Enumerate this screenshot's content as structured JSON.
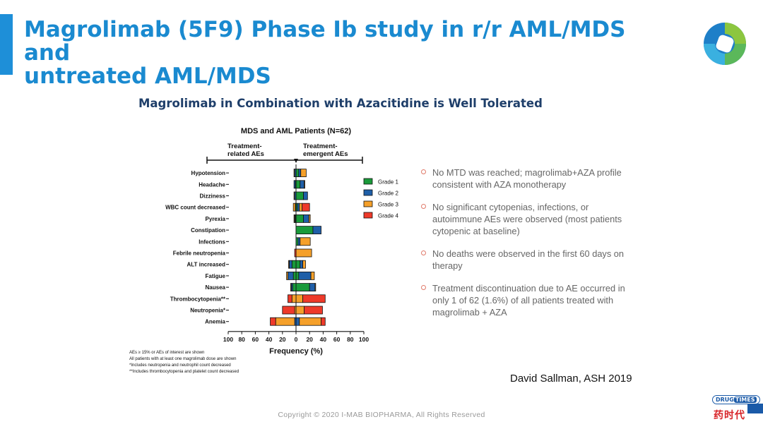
{
  "slide": {
    "title_line1": "Magrolimab (5F9) Phase Ib study in r/r AML/MDS and",
    "title_line2": "untreated AML/MDS",
    "subtitle": "Magrolimab in Combination with Azacitidine is Well Tolerated",
    "accent_color": "#1e8fd8"
  },
  "chart_data": {
    "type": "bar",
    "orientation": "horizontal-diverging-stacked",
    "title": "MDS and AML Patients (N=62)",
    "left_header": [
      "Treatment-",
      "related AEs"
    ],
    "right_header": [
      "Treatment-",
      "emergent AEs"
    ],
    "xlabel": "Frequency (%)",
    "ylabel": "",
    "xlim": [
      -100,
      100
    ],
    "x_ticks": [
      -100,
      -80,
      -60,
      -40,
      -20,
      0,
      20,
      40,
      60,
      80,
      100
    ],
    "x_tick_labels": [
      "100",
      "80",
      "60",
      "40",
      "20",
      "0",
      "20",
      "40",
      "60",
      "80",
      "100"
    ],
    "categories": [
      "Hypotension",
      "Headache",
      "Dizziness",
      "WBC count decreased",
      "Pyrexia",
      "Constipation",
      "Infections",
      "Febrile neutropenia",
      "ALT increased",
      "Fatigue",
      "Nausea",
      "Thrombocytopenia**",
      "Neutropenia*",
      "Anemia"
    ],
    "legend": {
      "placement": "right",
      "entries": [
        "Grade 1",
        "Grade 2",
        "Grade 3",
        "Grade 4"
      ]
    },
    "colors": {
      "Grade 1": "#1a9a3a",
      "Grade 2": "#1f5fa8",
      "Grade 3": "#f5a02a",
      "Grade 4": "#ee3a2a"
    },
    "left_series": [
      {
        "name": "Grade 1",
        "values": [
          0,
          1,
          0,
          0,
          1,
          0,
          0,
          0,
          6,
          4,
          5,
          0,
          0,
          0
        ]
      },
      {
        "name": "Grade 2",
        "values": [
          2,
          2,
          2,
          1,
          1,
          0,
          0,
          0,
          4,
          8,
          2,
          0,
          0,
          2
        ]
      },
      {
        "name": "Grade 3",
        "values": [
          1,
          0,
          1,
          3,
          1,
          0,
          0,
          0,
          1,
          2,
          1,
          6,
          2,
          28
        ]
      },
      {
        "name": "Grade 4",
        "values": [
          0,
          0,
          0,
          0,
          0,
          0,
          0,
          2,
          0,
          0,
          0,
          6,
          18,
          8
        ]
      }
    ],
    "right_series": [
      {
        "name": "Grade 1",
        "values": [
          4,
          6,
          11,
          2,
          11,
          25,
          3,
          0,
          6,
          4,
          20,
          0,
          0,
          0
        ]
      },
      {
        "name": "Grade 2",
        "values": [
          3,
          6,
          6,
          3,
          8,
          12,
          3,
          0,
          4,
          18,
          8,
          0,
          0,
          5
        ]
      },
      {
        "name": "Grade 3",
        "values": [
          8,
          1,
          0,
          4,
          2,
          0,
          15,
          23,
          4,
          5,
          1,
          10,
          12,
          32
        ]
      },
      {
        "name": "Grade 4",
        "values": [
          0,
          0,
          0,
          11,
          0,
          0,
          0,
          0,
          0,
          0,
          0,
          33,
          27,
          6
        ]
      }
    ],
    "footnotes": [
      "AEs ≥ 15% or AEs of interest are shown",
      "All patients with at least one magrolimab dose are shown",
      "*Includes neutropenia and neutrophil count decreased",
      "**Includes thrombocytopenia and platelet count decreased"
    ]
  },
  "bullets": [
    "No MTD was reached; magrolimab+AZA profile consistent with AZA monotherapy",
    "No significant cytopenias, infections, or autoimmune AEs were observed (most patients cytopenic at baseline)",
    "No deaths were observed in the first 60 days on therapy",
    "Treatment discontinuation due to AE occurred in only 1 of 62 (1.6%) of all patients treated with magrolimab + AZA"
  ],
  "citation": "David Sallman, ASH 2019",
  "footer": "Copyright © 2020 I-MAB BIOPHARMA, All Rights Reserved",
  "watermark": {
    "badge": "DRUG",
    "badge_highlight": "TIMES",
    "text": "药时代"
  }
}
